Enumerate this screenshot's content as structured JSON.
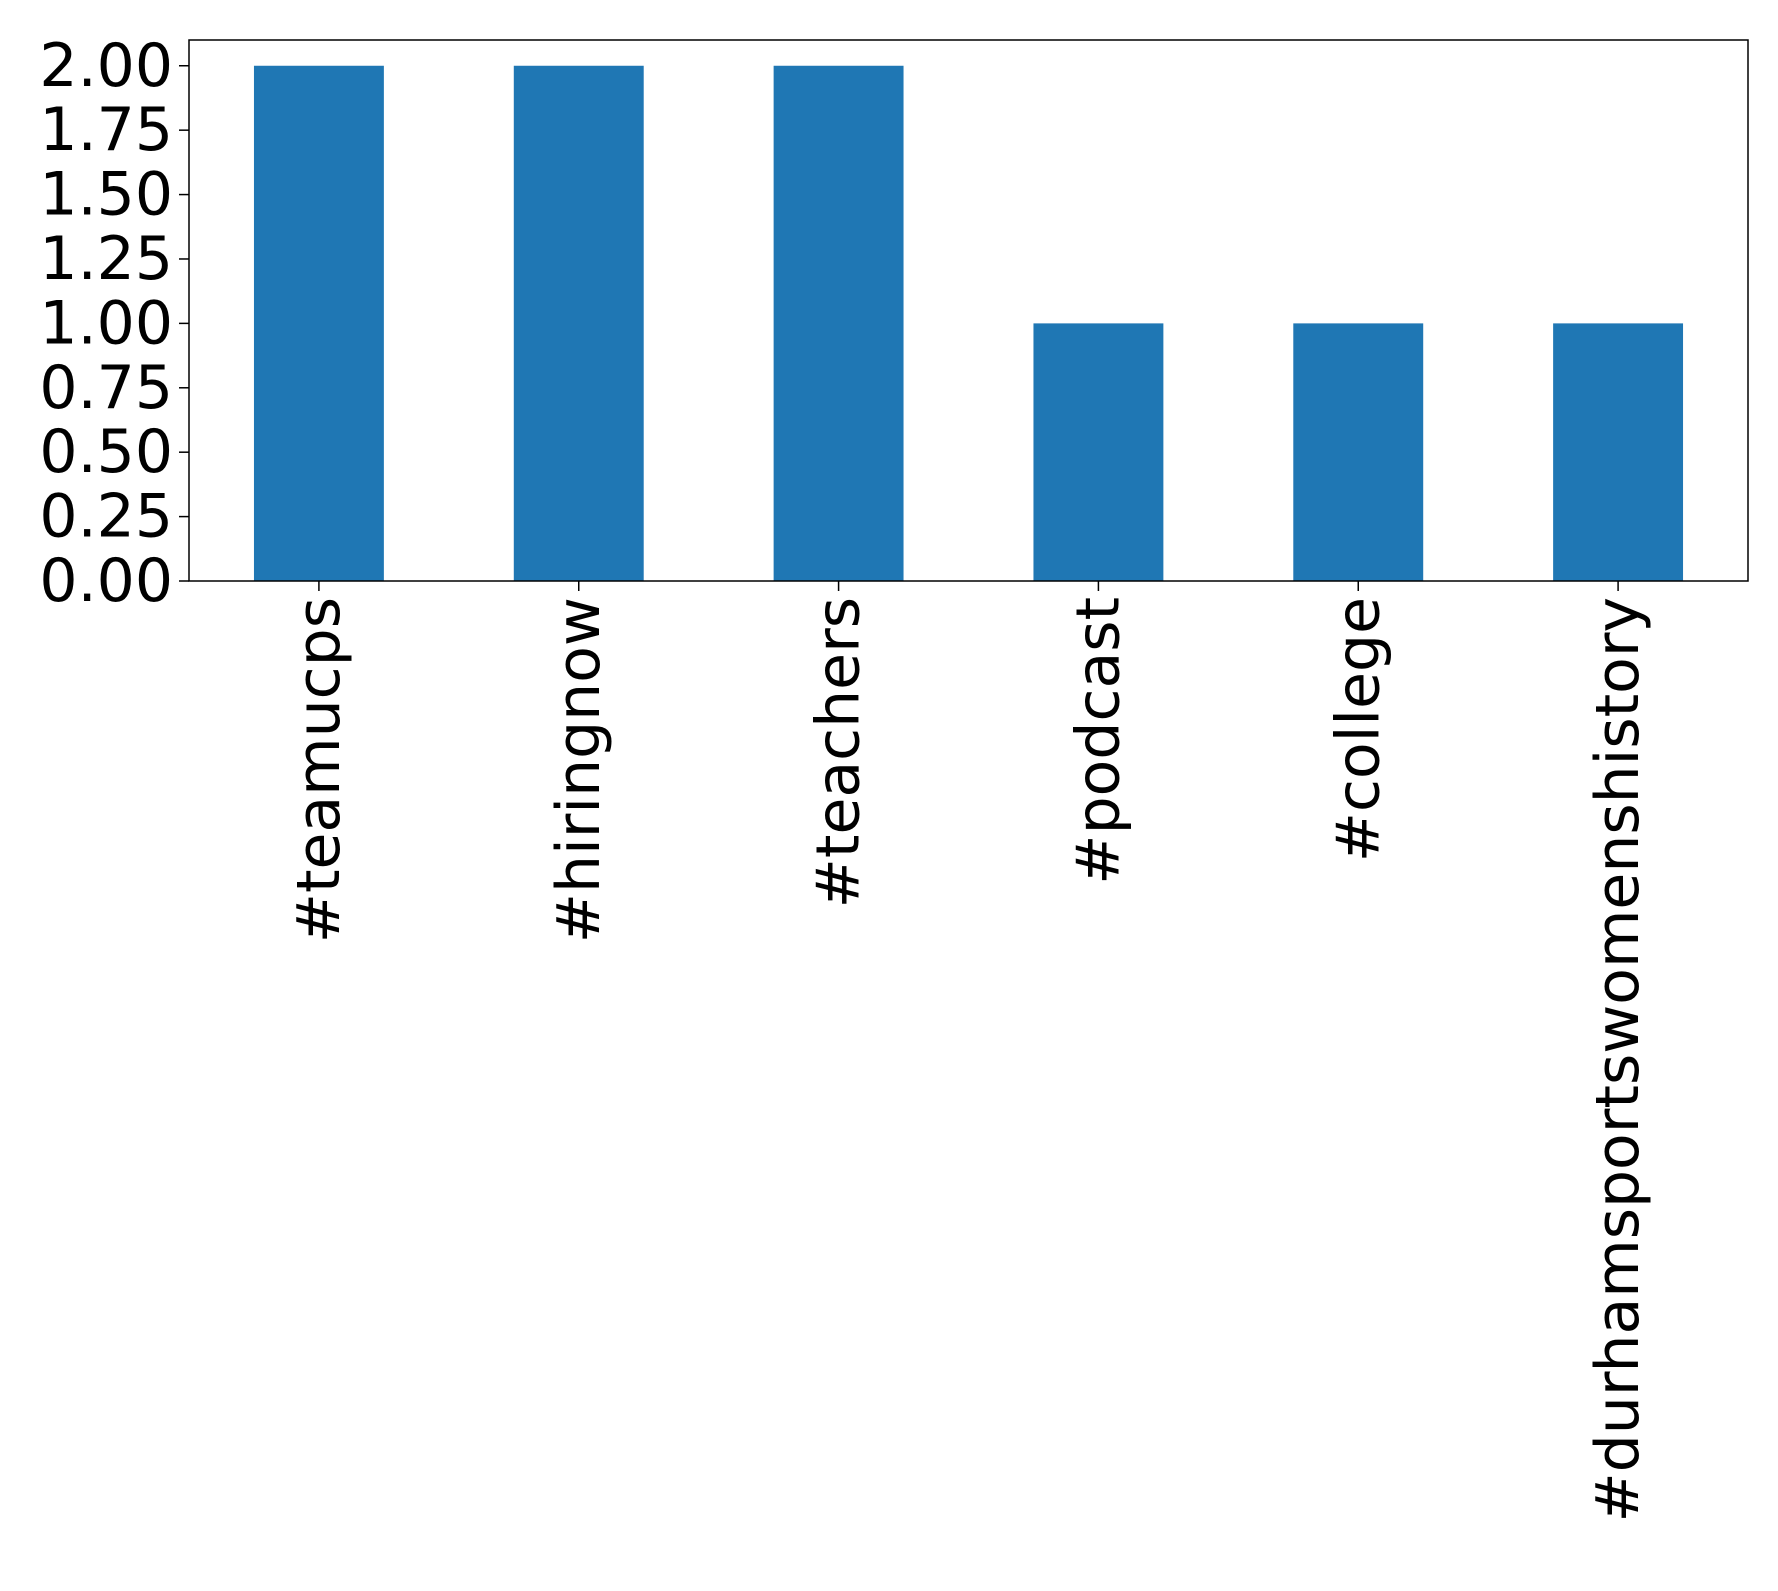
{
  "chart_data": {
    "type": "bar",
    "categories": [
      "#teamucps",
      "#hiringnow",
      "#teachers",
      "#podcast",
      "#college",
      "#durhamsportswomenshistory"
    ],
    "values": [
      2,
      2,
      2,
      1,
      1,
      1
    ],
    "color": "#1f77b4",
    "ylim": [
      0,
      2.1
    ],
    "yticks": [
      {
        "value": 0,
        "label": "0.00"
      },
      {
        "value": 0.25,
        "label": "0.25"
      },
      {
        "value": 0.5,
        "label": "0.50"
      },
      {
        "value": 0.75,
        "label": "0.75"
      },
      {
        "value": 1,
        "label": "1.00"
      },
      {
        "value": 1.25,
        "label": "1.25"
      },
      {
        "value": 1.5,
        "label": "1.50"
      },
      {
        "value": 1.75,
        "label": "1.75"
      },
      {
        "value": 2,
        "label": "2.00"
      }
    ],
    "grid": false
  }
}
